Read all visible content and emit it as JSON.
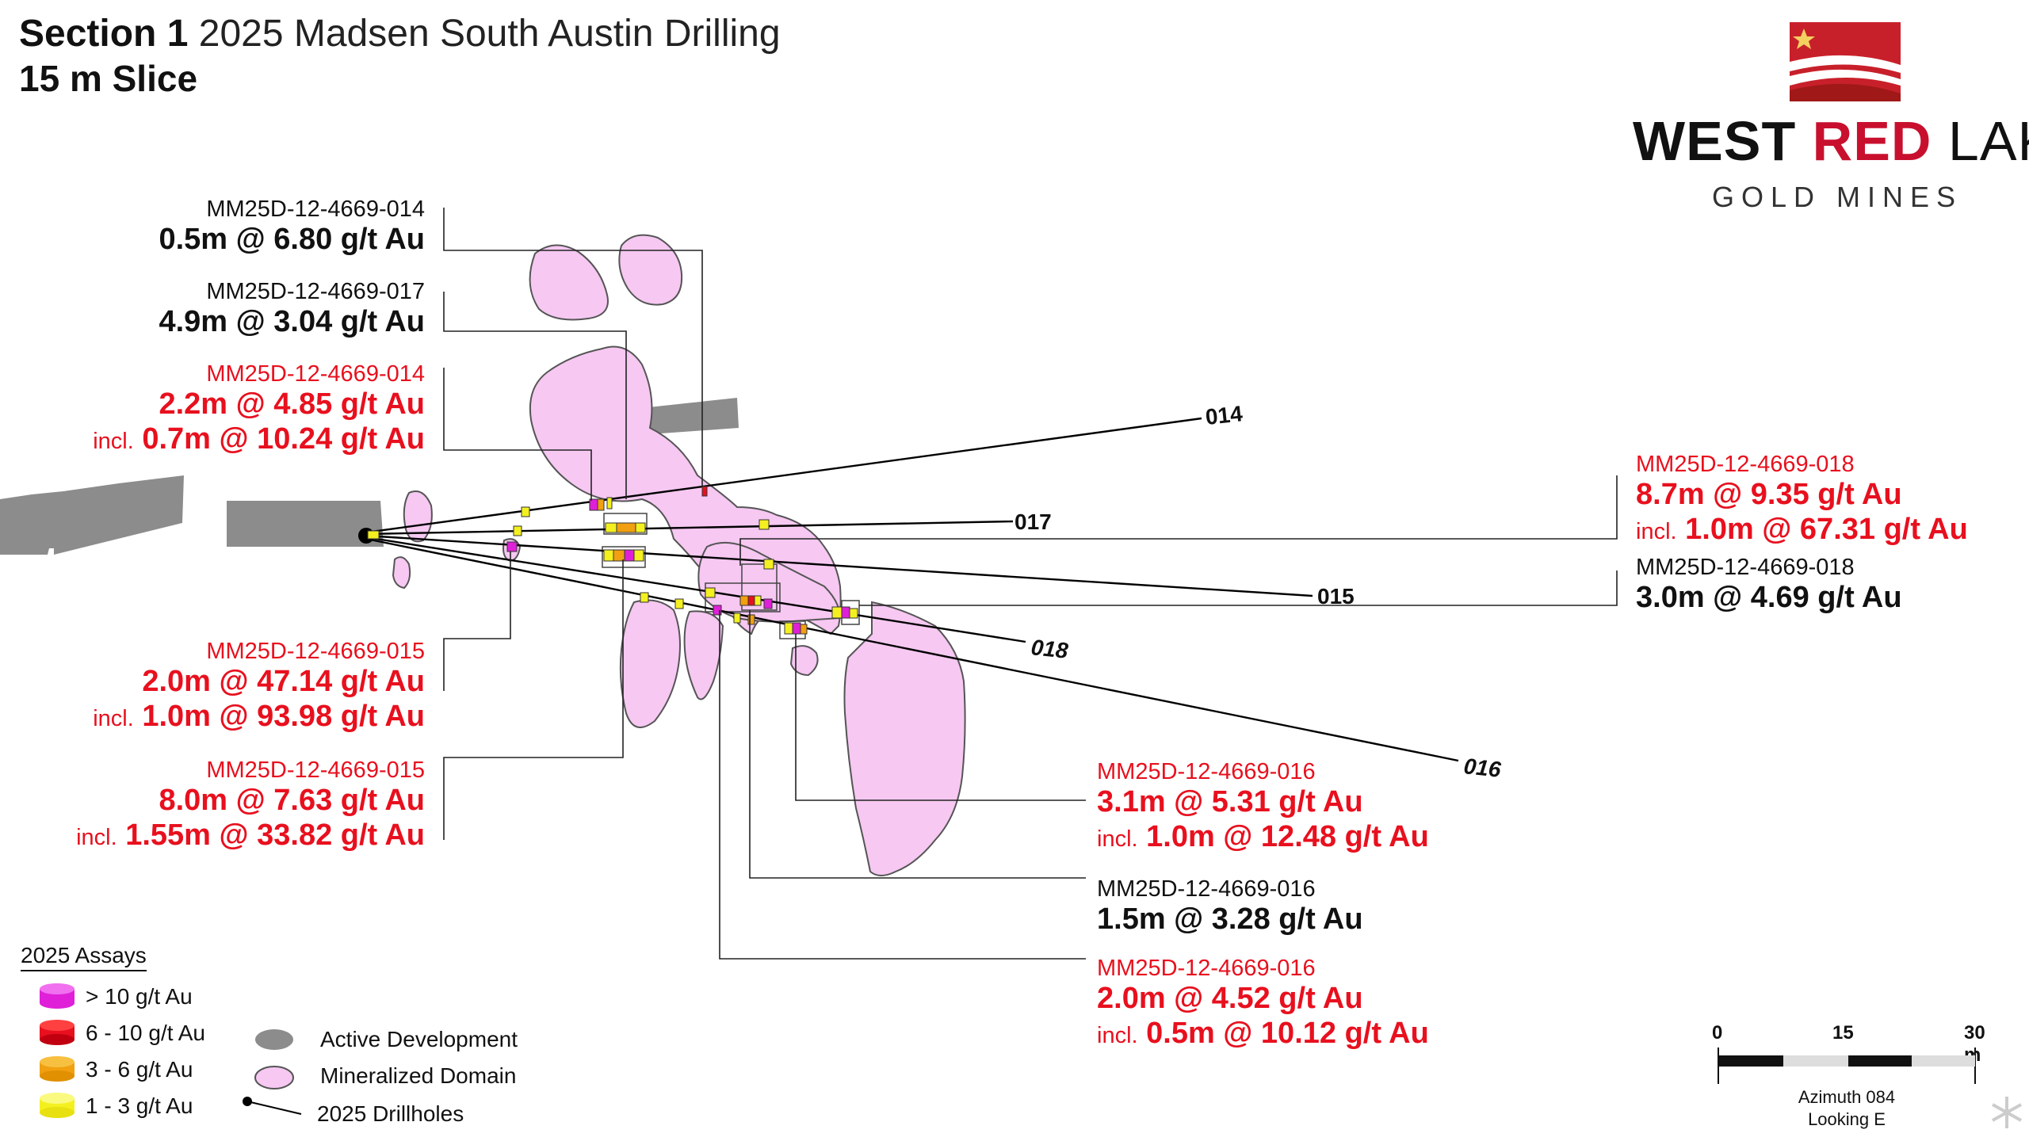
{
  "header": {
    "section": "Section 1",
    "subtitle": "2025 Madsen South Austin Drilling",
    "slice": "15 m Slice"
  },
  "logo": {
    "west": "WEST",
    "red": "RED",
    "lake": "LAKE",
    "gold_mines": "GOLD MINES",
    "colors": {
      "red": "#c8102e",
      "dark_red": "#a01818"
    }
  },
  "drillhole_labels": {
    "h014": "014",
    "h017": "017",
    "h015": "015",
    "h018": "018",
    "h016": "016"
  },
  "annotations": {
    "a1": {
      "hole": "MM25D-12-4669-014",
      "value": "0.5m @ 6.80 g/t Au"
    },
    "a2": {
      "hole": "MM25D-12-4669-017",
      "value": "4.9m @ 3.04 g/t Au"
    },
    "a3": {
      "hole": "MM25D-12-4669-014",
      "value": "2.2m @ 4.85 g/t Au",
      "incl_prefix": "incl.",
      "incl_value": "0.7m @ 10.24 g/t Au"
    },
    "a4": {
      "hole": "MM25D-12-4669-015",
      "value": "2.0m @ 47.14 g/t Au",
      "incl_prefix": "incl.",
      "incl_value": "1.0m @ 93.98 g/t Au"
    },
    "a5": {
      "hole": "MM25D-12-4669-015",
      "value": "8.0m @ 7.63 g/t Au",
      "incl_prefix": "incl.",
      "incl_value": "1.55m @ 33.82 g/t Au"
    },
    "a6": {
      "hole": "MM25D-12-4669-018",
      "value": "8.7m @ 9.35 g/t Au",
      "incl_prefix": "incl.",
      "incl_value": "1.0m @ 67.31 g/t Au"
    },
    "a7": {
      "hole": "MM25D-12-4669-018",
      "value": "3.0m @ 4.69 g/t Au"
    },
    "a8": {
      "hole": "MM25D-12-4669-016",
      "value": "3.1m @ 5.31 g/t Au",
      "incl_prefix": "incl.",
      "incl_value": "1.0m @ 12.48 g/t Au"
    },
    "a9": {
      "hole": "MM25D-12-4669-016",
      "value": "1.5m @ 3.28 g/t Au"
    },
    "a10": {
      "hole": "MM25D-12-4669-016",
      "value": "2.0m @ 4.52 g/t Au",
      "incl_prefix": "incl.",
      "incl_value": "0.5m @ 10.12 g/t Au"
    }
  },
  "legend": {
    "title": "2025 Assays",
    "grades": [
      {
        "label": "> 10 g/t Au",
        "color": "#e020d8"
      },
      {
        "label": "6 - 10 g/t Au",
        "color": "#e8101e"
      },
      {
        "label": "3 - 6 g/t Au",
        "color": "#f0a010"
      },
      {
        "label": "1 - 3 g/t Au",
        "color": "#f4f020"
      }
    ],
    "active_development": "Active Development",
    "mineralized_domain": "Mineralized Domain",
    "drillholes": "2025 Drillholes"
  },
  "colors": {
    "domain_fill": "#f6c8f2",
    "development": "#8c8c8c",
    "label_red": "#e8101e"
  },
  "scale_bar": {
    "ticks": [
      "0",
      "15",
      "30 m"
    ],
    "azimuth": "Azimuth 084",
    "looking": "Looking E"
  }
}
